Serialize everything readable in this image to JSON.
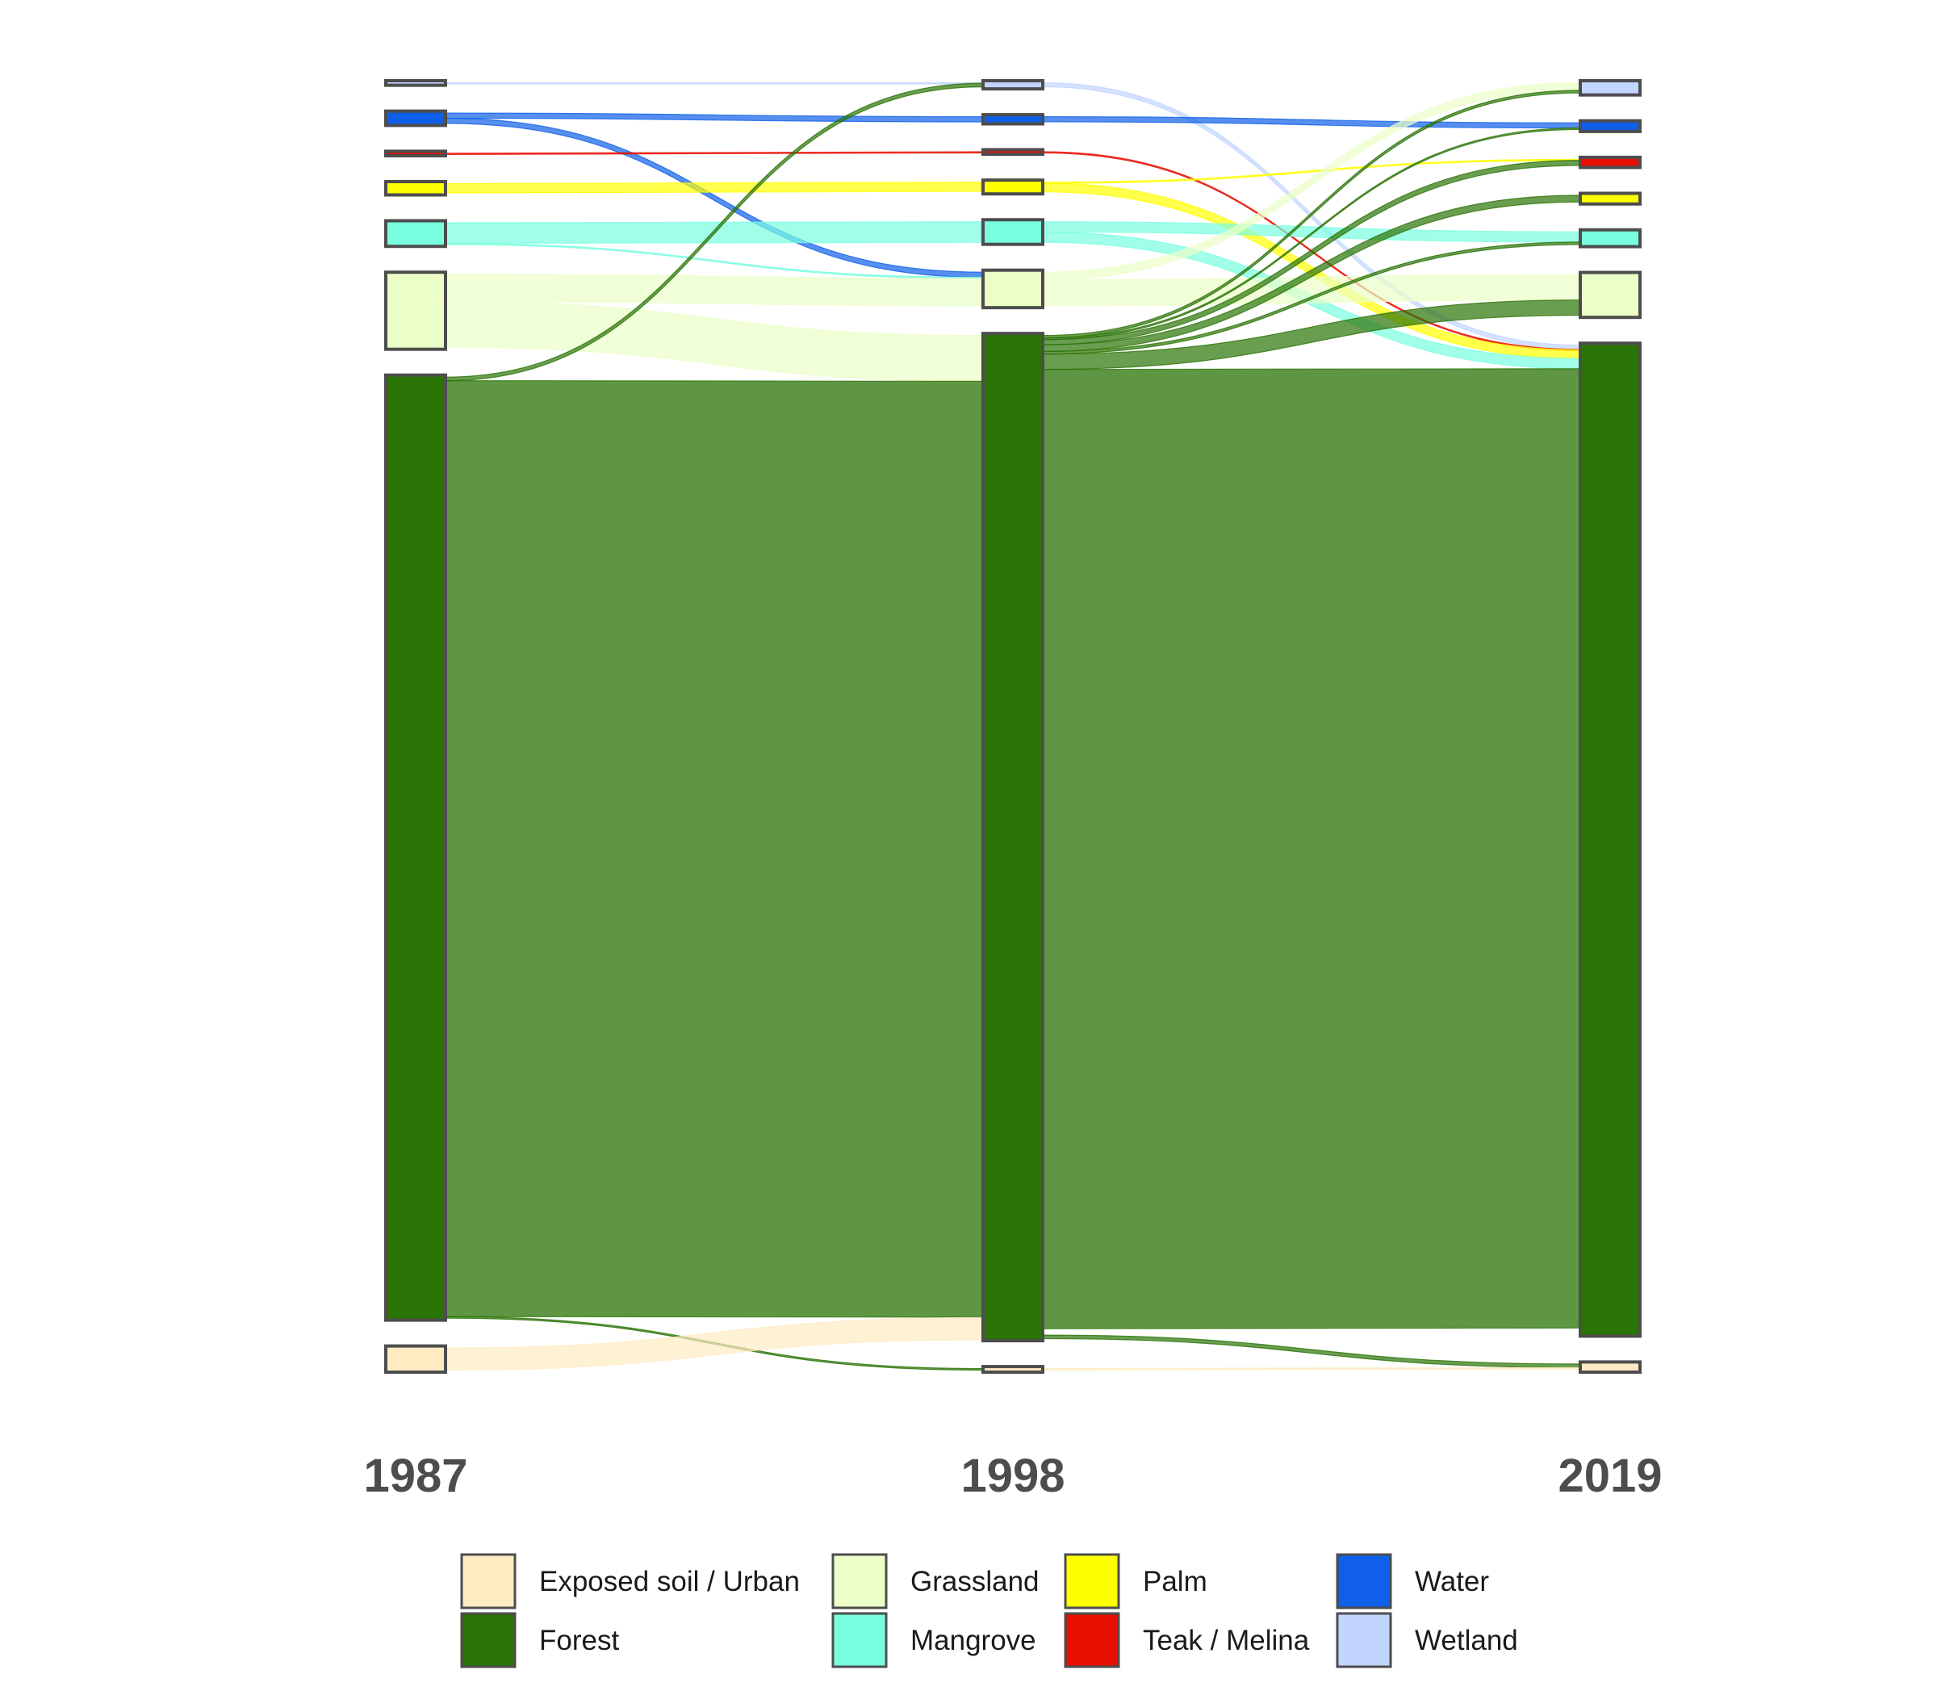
{
  "chart_data": {
    "type": "sankey",
    "title": "",
    "stages": [
      "1987",
      "1998",
      "2019"
    ],
    "categories": [
      {
        "name": "Wetland",
        "color": "#C2D5FF"
      },
      {
        "name": "Water",
        "color": "#0F5FE8"
      },
      {
        "name": "Teak / Melina",
        "color": "#E80F00"
      },
      {
        "name": "Palm",
        "color": "#FFFF00"
      },
      {
        "name": "Mangrove",
        "color": "#79FFDF"
      },
      {
        "name": "Grassland",
        "color": "#EBFFC7"
      },
      {
        "name": "Forest",
        "color": "#2A7305"
      },
      {
        "name": "Exposed soil / Urban",
        "color": "#FFEBC2"
      }
    ],
    "nodes": {
      "1987": {
        "Wetland": 0.1,
        "Water": 2.0,
        "Teak / Melina": 0.1,
        "Palm": 1.8,
        "Mangrove": 4.2,
        "Grassland": 14.2,
        "Forest": 183.0,
        "Exposed soil / Urban": 4.3
      },
      "1998": {
        "Wetland": 0.8,
        "Water": 1.0,
        "Teak / Melina": 0.1,
        "Palm": 1.9,
        "Mangrove": 4.0,
        "Grassland": 6.5,
        "Forest": 195.0,
        "Exposed soil / Urban": 0.3
      },
      "2019": {
        "Wetland": 2.0,
        "Water": 1.3,
        "Teak / Melina": 1.2,
        "Palm": 1.3,
        "Mangrove": 2.5,
        "Grassland": 8.0,
        "Forest": 193.5,
        "Exposed soil / Urban": 1.2
      }
    },
    "flows": [
      {
        "period": "1987-1998",
        "from": "Wetland",
        "to": "Wetland",
        "value": 0.1
      },
      {
        "period": "1987-1998",
        "from": "Water",
        "to": "Water",
        "value": 1.0
      },
      {
        "period": "1987-1998",
        "from": "Water",
        "to": "Grassland",
        "value": 1.0
      },
      {
        "period": "1987-1998",
        "from": "Teak / Melina",
        "to": "Teak / Melina",
        "value": 0.1
      },
      {
        "period": "1987-1998",
        "from": "Palm",
        "to": "Palm",
        "value": 1.8
      },
      {
        "period": "1987-1998",
        "from": "Mangrove",
        "to": "Mangrove",
        "value": 4.0
      },
      {
        "period": "1987-1998",
        "from": "Mangrove",
        "to": "Grassland",
        "value": 0.2
      },
      {
        "period": "1987-1998",
        "from": "Grassland",
        "to": "Grassland",
        "value": 5.3
      },
      {
        "period": "1987-1998",
        "from": "Grassland",
        "to": "Forest",
        "value": 8.9
      },
      {
        "period": "1987-1998",
        "from": "Forest",
        "to": "Wetland",
        "value": 0.7
      },
      {
        "period": "1987-1998",
        "from": "Forest",
        "to": "Forest",
        "value": 182.0
      },
      {
        "period": "1987-1998",
        "from": "Forest",
        "to": "Exposed soil / Urban",
        "value": 0.3
      },
      {
        "period": "1987-1998",
        "from": "Exposed soil / Urban",
        "to": "Forest",
        "value": 4.3
      },
      {
        "period": "1998-2019",
        "from": "Wetland",
        "to": "Forest",
        "value": 0.8
      },
      {
        "period": "1998-2019",
        "from": "Water",
        "to": "Water",
        "value": 1.0
      },
      {
        "period": "1998-2019",
        "from": "Teak / Melina",
        "to": "Forest",
        "value": 0.1
      },
      {
        "period": "1998-2019",
        "from": "Palm",
        "to": "Teak / Melina",
        "value": 0.2
      },
      {
        "period": "1998-2019",
        "from": "Palm",
        "to": "Forest",
        "value": 1.7
      },
      {
        "period": "1998-2019",
        "from": "Mangrove",
        "to": "Mangrove",
        "value": 2.0
      },
      {
        "period": "1998-2019",
        "from": "Mangrove",
        "to": "Forest",
        "value": 2.0
      },
      {
        "period": "1998-2019",
        "from": "Grassland",
        "to": "Wetland",
        "value": 1.5
      },
      {
        "period": "1998-2019",
        "from": "Grassland",
        "to": "Grassland",
        "value": 5.0
      },
      {
        "period": "1998-2019",
        "from": "Forest",
        "to": "Wetland",
        "value": 0.5
      },
      {
        "period": "1998-2019",
        "from": "Forest",
        "to": "Water",
        "value": 0.3
      },
      {
        "period": "1998-2019",
        "from": "Forest",
        "to": "Teak / Melina",
        "value": 1.0
      },
      {
        "period": "1998-2019",
        "from": "Forest",
        "to": "Palm",
        "value": 1.3
      },
      {
        "period": "1998-2019",
        "from": "Forest",
        "to": "Mangrove",
        "value": 0.5
      },
      {
        "period": "1998-2019",
        "from": "Forest",
        "to": "Grassland",
        "value": 3.0
      },
      {
        "period": "1998-2019",
        "from": "Forest",
        "to": "Forest",
        "value": 187.7
      },
      {
        "period": "1998-2019",
        "from": "Forest",
        "to": "Exposed soil / Urban",
        "value": 0.7
      },
      {
        "period": "1998-2019",
        "from": "Exposed soil / Urban",
        "to": "Exposed soil / Urban",
        "value": 0.3
      }
    ],
    "legend": {
      "position": "bottom",
      "entries": [
        "Exposed soil / Urban",
        "Forest",
        "Grassland",
        "Mangrove",
        "Palm",
        "Teak / Melina",
        "Water",
        "Wetland"
      ]
    },
    "grid": false
  }
}
